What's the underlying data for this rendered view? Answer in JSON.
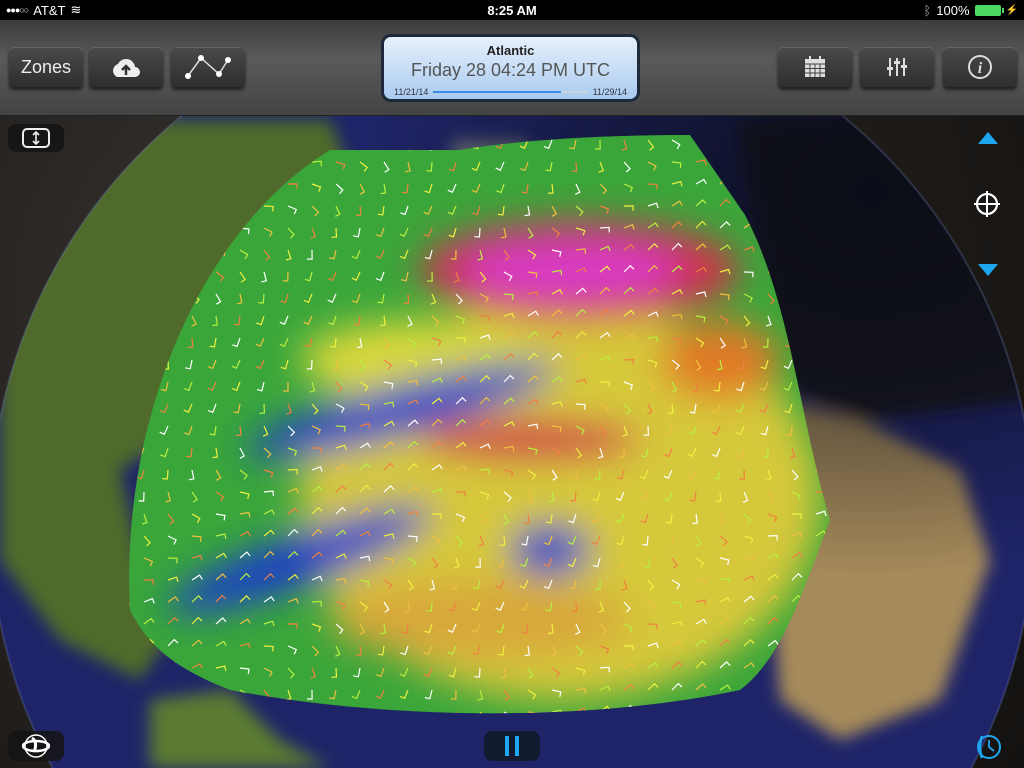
{
  "status_bar": {
    "carrier": "AT&T",
    "time": "8:25 AM",
    "battery": "100%",
    "signal_bars": 3
  },
  "toolbar": {
    "zones_label": "Zones",
    "left_icons": [
      "cloud-upload-icon",
      "route-icon"
    ],
    "right_icons": [
      "calendar-icon",
      "sliders-icon",
      "info-icon"
    ]
  },
  "forecast": {
    "region": "Atlantic",
    "datetime": "Friday 28 04:24 PM UTC",
    "start_date": "11/21/14",
    "end_date": "11/29/14",
    "progress": 0.83
  },
  "map": {
    "layer": "wind",
    "colors": {
      "calm": "#1a3cc8",
      "light": "#2fae3a",
      "moderate": "#d9d83a",
      "strong": "#e07a28",
      "gale": "#d0304a",
      "storm": "#d83cc8"
    },
    "accent": "#1ea7f0"
  },
  "controls": {
    "play_state": "paused"
  }
}
